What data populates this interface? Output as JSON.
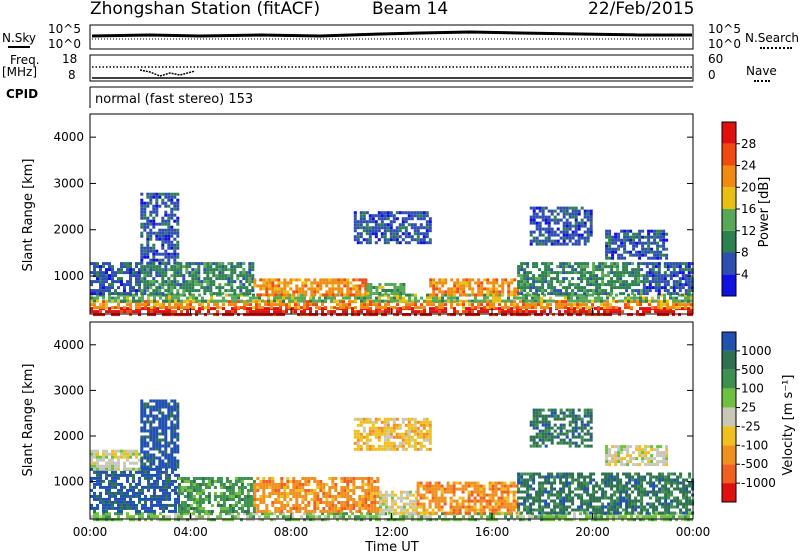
{
  "header": {
    "station": "Zhongshan Station (fitACF)",
    "beam": "Beam 14",
    "date": "22/Feb/2015"
  },
  "status_panels": {
    "nsky_label": "N.Sky",
    "nsky_ticks": [
      "10^5",
      "10^0"
    ],
    "nsearch_label": "N.Search",
    "nsearch_ticks": [
      "10^5",
      "10^0"
    ],
    "freq_label_1": "Freq.",
    "freq_label_2": "[MHz]",
    "freq_ticks": [
      "18",
      "8"
    ],
    "nave_label": "Nave",
    "nave_ticks": [
      "60",
      "0"
    ],
    "cpid_label": "CPID",
    "cpid_text": "normal (fast stereo) 153"
  },
  "chart_data": [
    {
      "type": "heatmap",
      "name": "power",
      "ylabel": "Slant Range [km]",
      "yticks": [
        "1000",
        "2000",
        "3000",
        "4000"
      ],
      "ylim": [
        180,
        4500
      ],
      "xlim": [
        0,
        24
      ],
      "colorbar_label": "Power [dB]",
      "colorbar_ticks": [
        "4",
        "8",
        "12",
        "16",
        "20",
        "24",
        "28"
      ],
      "colors": [
        "#1010e0",
        "#2f4fb0",
        "#2e8050",
        "#58a858",
        "#e8c010",
        "#f08a10",
        "#f04a10",
        "#e01010"
      ],
      "bands": [
        {
          "t0": 0.0,
          "t1": 24.0,
          "r0": 180,
          "r1": 330,
          "level": 7
        },
        {
          "t0": 0.0,
          "t1": 24.0,
          "r0": 330,
          "r1": 480,
          "level": 5
        },
        {
          "t0": 0.0,
          "t1": 24.0,
          "r0": 480,
          "r1": 620,
          "level": 3
        },
        {
          "t0": 0.0,
          "t1": 2.0,
          "r0": 620,
          "r1": 1300,
          "level": 1
        },
        {
          "t0": 2.0,
          "t1": 6.5,
          "r0": 620,
          "r1": 1300,
          "level": 2
        },
        {
          "t0": 6.5,
          "t1": 11.0,
          "r0": 620,
          "r1": 950,
          "level": 5
        },
        {
          "t0": 11.0,
          "t1": 12.5,
          "r0": 620,
          "r1": 850,
          "level": 3
        },
        {
          "t0": 13.5,
          "t1": 17.0,
          "r0": 620,
          "r1": 950,
          "level": 5
        },
        {
          "t0": 17.0,
          "t1": 22.0,
          "r0": 620,
          "r1": 1300,
          "level": 2
        },
        {
          "t0": 22.0,
          "t1": 24.0,
          "r0": 620,
          "r1": 1300,
          "level": 1
        },
        {
          "t0": 2.0,
          "t1": 3.5,
          "r0": 1300,
          "r1": 2800,
          "level": 1
        },
        {
          "t0": 10.5,
          "t1": 13.5,
          "r0": 1700,
          "r1": 2400,
          "level": 1
        },
        {
          "t0": 17.5,
          "t1": 20.0,
          "r0": 1700,
          "r1": 2500,
          "level": 1
        },
        {
          "t0": 20.5,
          "t1": 23.0,
          "r0": 1400,
          "r1": 2000,
          "level": 1
        }
      ]
    },
    {
      "type": "heatmap",
      "name": "velocity",
      "ylabel": "Slant Range [km]",
      "yticks": [
        "1000",
        "2000",
        "3000",
        "4000"
      ],
      "ylim": [
        180,
        4500
      ],
      "xlim": [
        0,
        24
      ],
      "xticks": [
        "00:00",
        "04:00",
        "08:00",
        "12:00",
        "16:00",
        "20:00",
        "00:00"
      ],
      "xlabel": "Time UT",
      "colorbar_label": "Velocity [m s⁻¹]",
      "colorbar_ticks": [
        "1000",
        "500",
        "100",
        "25",
        "-25",
        "-100",
        "-500",
        "-1000"
      ],
      "colors": [
        "#2050b0",
        "#2e7050",
        "#3e9050",
        "#70c040",
        "#c8c8b8",
        "#f0c020",
        "#f09020",
        "#f06020",
        "#e01010"
      ],
      "bands": [
        {
          "t0": 0.0,
          "t1": 24.0,
          "r0": 180,
          "r1": 330,
          "level": 3
        },
        {
          "t0": 0.0,
          "t1": 3.5,
          "r0": 330,
          "r1": 1300,
          "level": 0
        },
        {
          "t0": 3.5,
          "t1": 6.5,
          "r0": 330,
          "r1": 1100,
          "level": 2
        },
        {
          "t0": 6.5,
          "t1": 11.5,
          "r0": 330,
          "r1": 1100,
          "level": 6
        },
        {
          "t0": 11.5,
          "t1": 13.0,
          "r0": 330,
          "r1": 800,
          "level": 4
        },
        {
          "t0": 13.0,
          "t1": 17.0,
          "r0": 330,
          "r1": 1000,
          "level": 6
        },
        {
          "t0": 17.0,
          "t1": 24.0,
          "r0": 330,
          "r1": 1200,
          "level": 1
        },
        {
          "t0": 0.0,
          "t1": 2.0,
          "r0": 1300,
          "r1": 1700,
          "level": 4
        },
        {
          "t0": 2.0,
          "t1": 3.5,
          "r0": 1300,
          "r1": 2800,
          "level": 0
        },
        {
          "t0": 10.5,
          "t1": 13.5,
          "r0": 1700,
          "r1": 2400,
          "level": 5
        },
        {
          "t0": 17.5,
          "t1": 20.0,
          "r0": 1800,
          "r1": 2600,
          "level": 1
        },
        {
          "t0": 20.5,
          "t1": 23.0,
          "r0": 1400,
          "r1": 1800,
          "level": 4
        }
      ]
    }
  ]
}
